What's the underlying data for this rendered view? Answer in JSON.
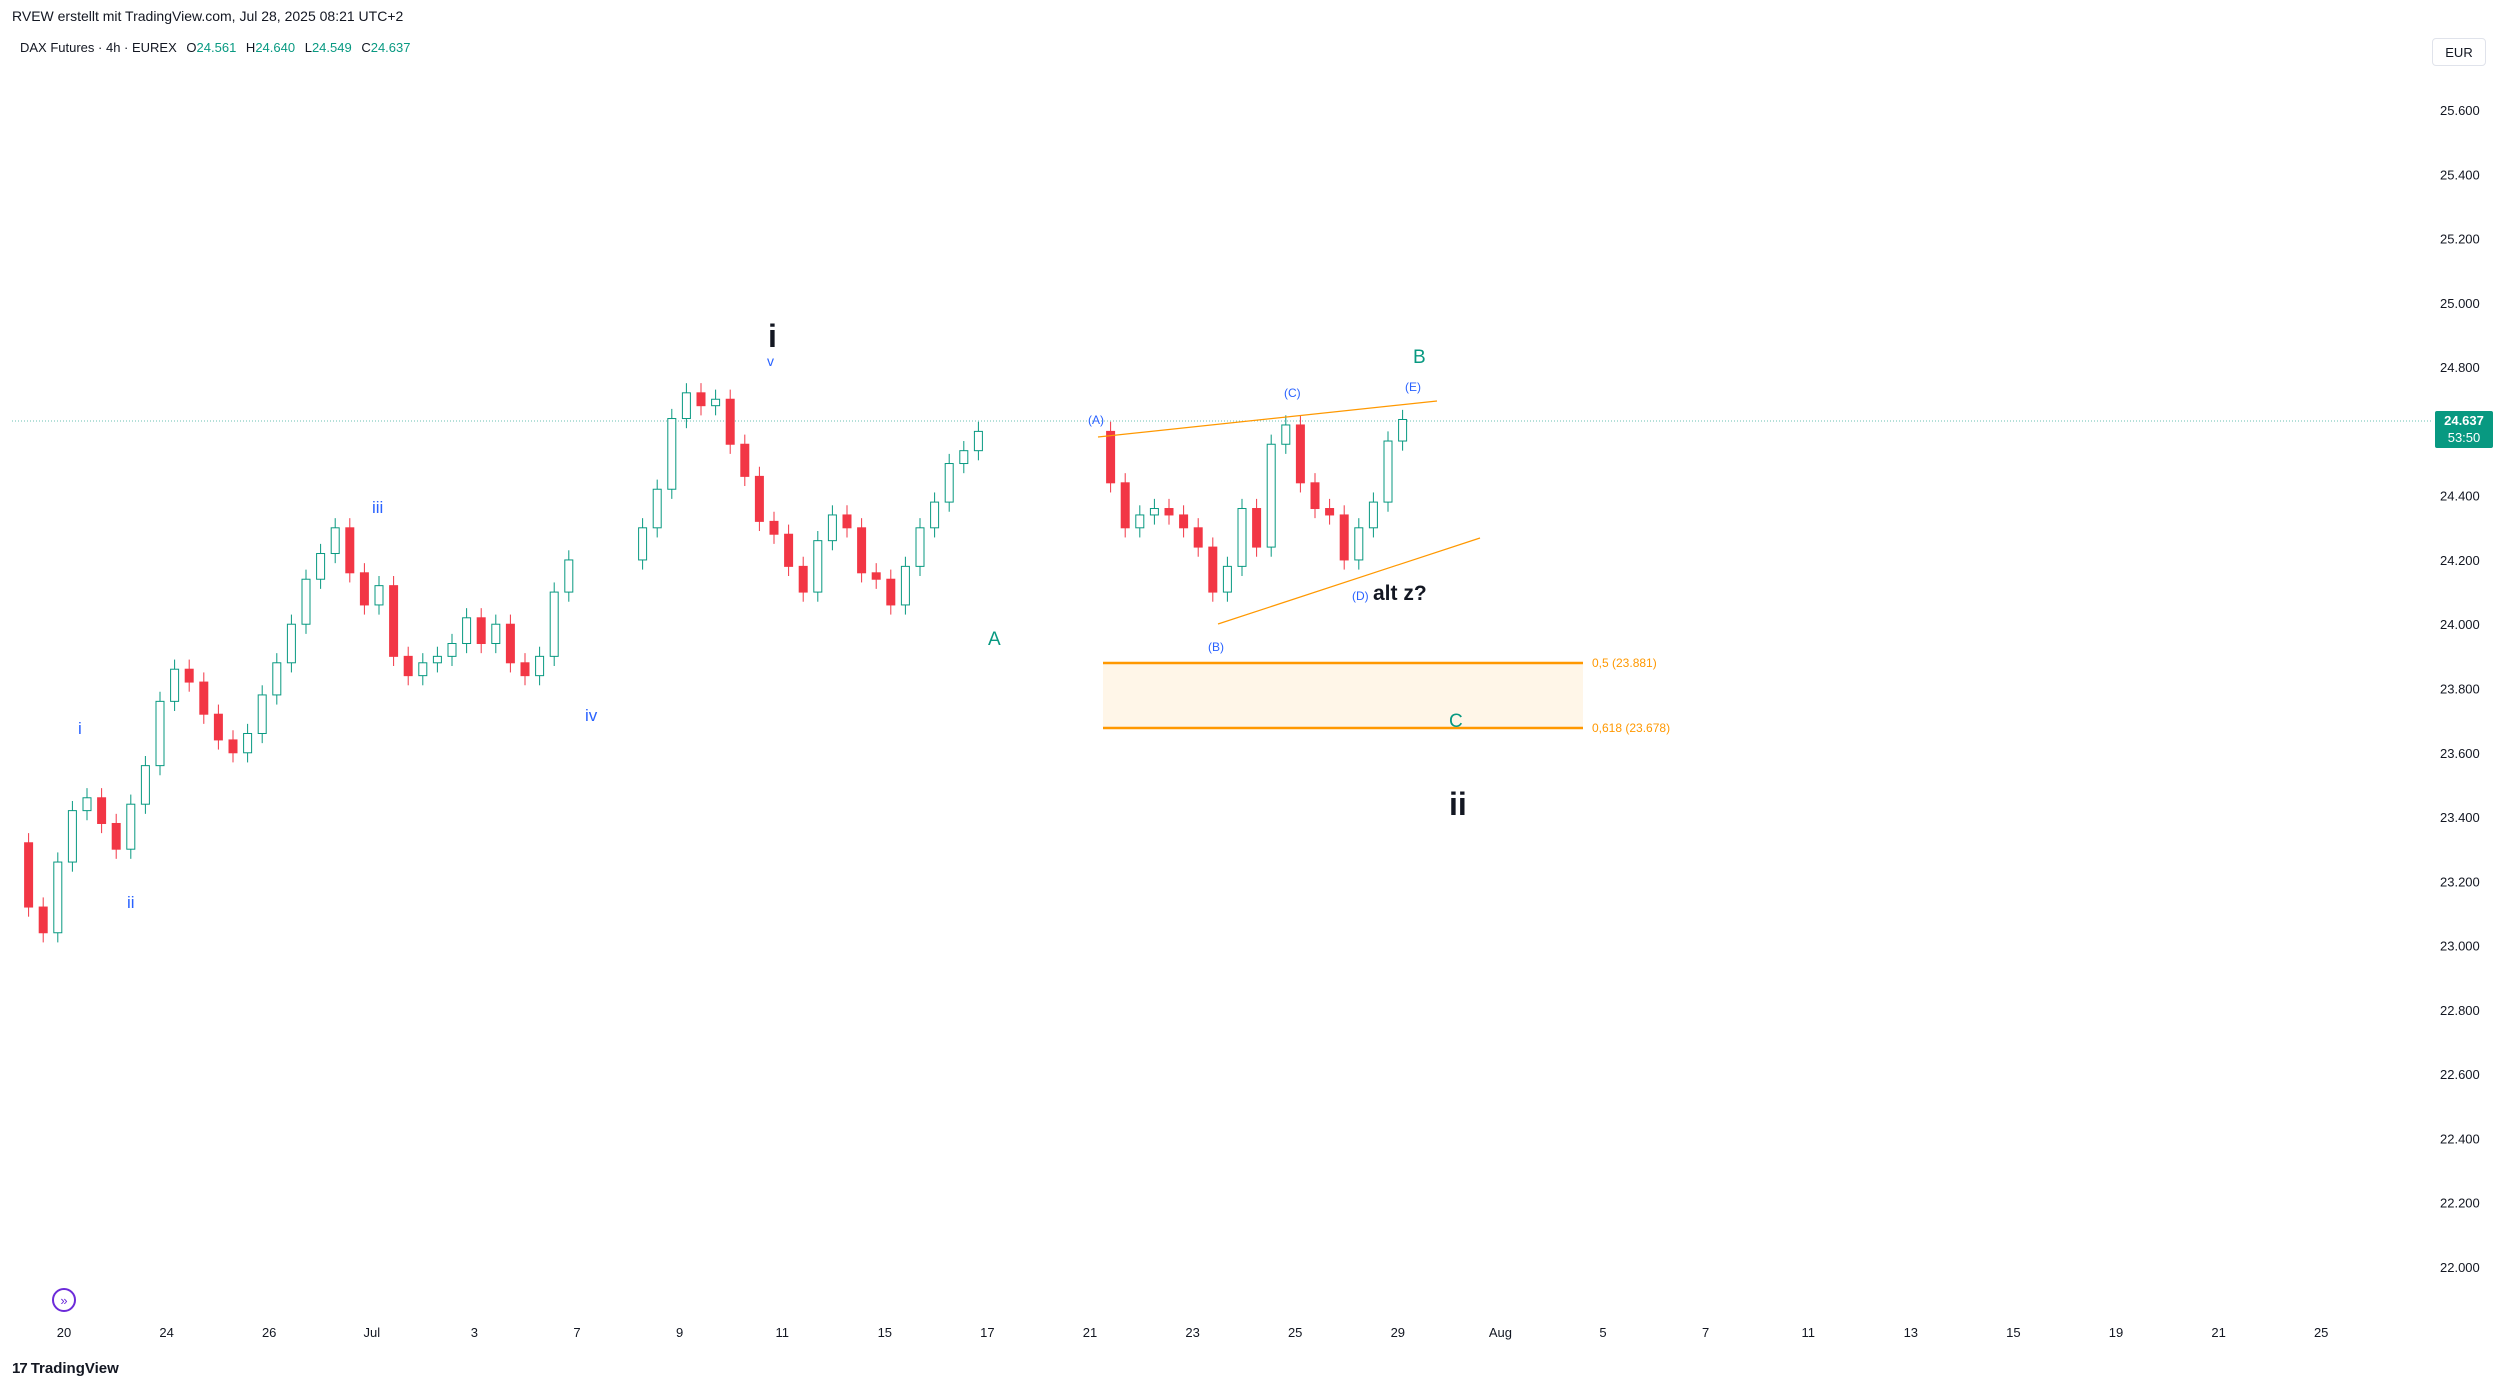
{
  "header": {
    "attribution": "RVEW erstellt mit TradingView.com, Jul 28, 2025 08:21 UTC+2",
    "symbol": "DAX Futures · 4h · EUREX",
    "o_label": "O",
    "o_value": "24.561",
    "h_label": "H",
    "h_value": "24.640",
    "l_label": "L",
    "l_value": "24.549",
    "c_label": "C",
    "c_value": "24.637"
  },
  "currency": "EUR",
  "last_price": {
    "price": "24.637",
    "countdown": "53:50",
    "color": "#089981"
  },
  "branding": {
    "logo_text": "TradingView",
    "logo_mark": "17"
  },
  "colors": {
    "up": "#089981",
    "down": "#f23645",
    "wave_blue": "#2962ff",
    "wave_teal": "#089981",
    "fib": "#ff9800"
  },
  "chart_data": {
    "type": "candlestick",
    "timeframe": "4h",
    "y_axis": {
      "ticks": [
        "25.600",
        "25.400",
        "25.200",
        "25.000",
        "24.800",
        "24.600",
        "24.400",
        "24.200",
        "24.000",
        "23.800",
        "23.600",
        "23.400",
        "23.200",
        "23.000",
        "22.800",
        "22.600",
        "22.400",
        "22.200",
        "22.000"
      ],
      "ylim": [
        21900,
        25800
      ]
    },
    "x_axis": {
      "ticks": [
        "20",
        "24",
        "26",
        "Jul",
        "3",
        "7",
        "9",
        "11",
        "15",
        "17",
        "21",
        "23",
        "25",
        "29",
        "Aug",
        "5",
        "7",
        "11",
        "13",
        "15",
        "19",
        "21",
        "25"
      ]
    },
    "series": [
      {
        "segment": 1,
        "values": [
          23320,
          23120,
          23040,
          23260,
          23420,
          23460,
          23380,
          23300,
          23440,
          23560,
          23760,
          23860,
          23820,
          23720,
          23640,
          23600,
          23660,
          23780,
          23880,
          24000,
          24140,
          24220,
          24300,
          24160,
          24060,
          24120,
          23900,
          23840,
          23880,
          23900,
          23940,
          24020,
          23940,
          24000,
          23880,
          23840,
          23900,
          24100,
          24200
        ]
      },
      {
        "segment": 2,
        "values": [
          24200,
          24300,
          24420,
          24640,
          24720,
          24680,
          24700,
          24560,
          24460,
          24320,
          24280,
          24180,
          24100,
          24260,
          24340,
          24300,
          24160,
          24140,
          24060,
          24180,
          24300,
          24380,
          24500,
          24540,
          24600
        ]
      },
      {
        "segment": 3,
        "values": [
          24600,
          24440,
          24300,
          24340,
          24360,
          24340,
          24300,
          24240,
          24100,
          24180,
          24360,
          24240,
          24560,
          24620,
          24440,
          24360,
          24340,
          24200,
          24300,
          24380,
          24570,
          24637
        ]
      }
    ],
    "fib_levels": [
      {
        "label": "0,5 (23.881)",
        "value": 23881
      },
      {
        "label": "0,618 (23.678)",
        "value": 23678
      }
    ],
    "wave_labels": {
      "i_big": "i",
      "v": "v",
      "iii": "iii",
      "i_small": "i",
      "ii_small": "ii",
      "iv": "iv",
      "A": "A",
      "B": "B",
      "C": "C",
      "ii_big": "ii",
      "wa": "(A)",
      "wb": "(B)",
      "wc": "(C)",
      "wd": "(D)",
      "we": "(E)",
      "altz": "alt z?"
    }
  }
}
